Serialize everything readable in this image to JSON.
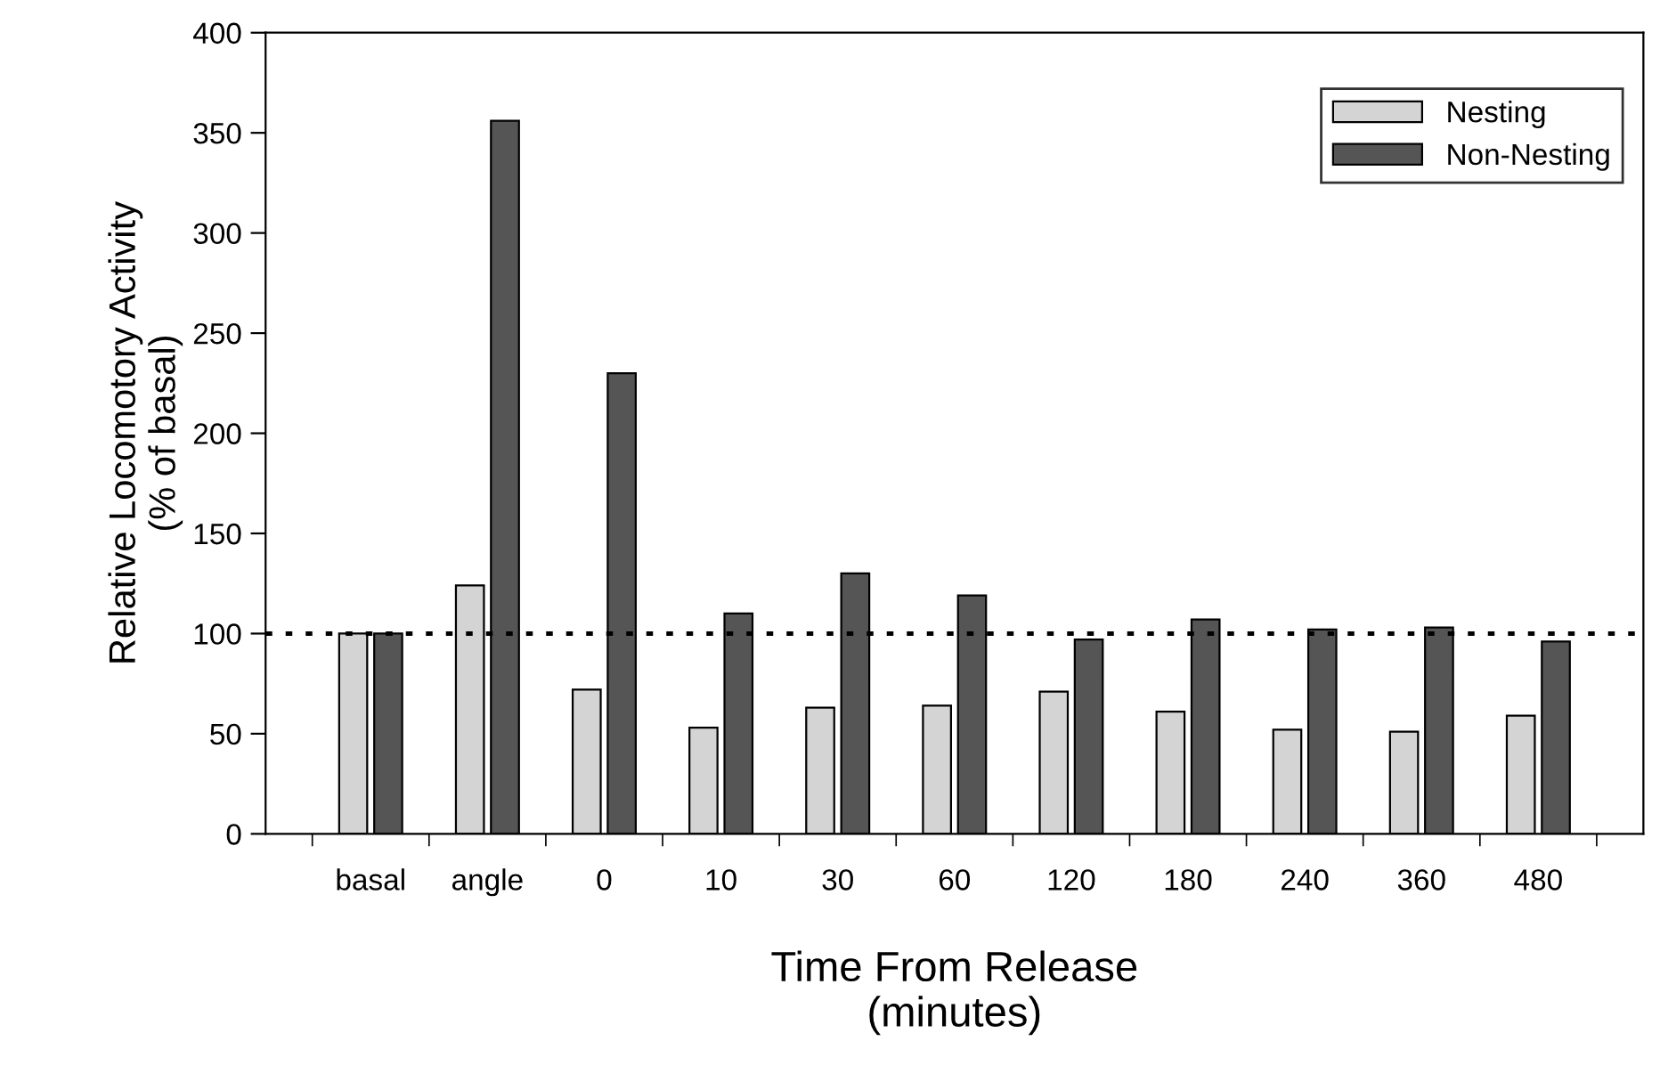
{
  "chart_data": {
    "type": "bar",
    "xlabel": "Time From Release\n(minutes)",
    "ylabel": "Relative Locomotory Activity\n(% of basal)",
    "categories": [
      "basal",
      "angle",
      "0",
      "10",
      "30",
      "60",
      "120",
      "180",
      "240",
      "360",
      "480"
    ],
    "series": [
      {
        "name": "Nesting",
        "color": "#d4d4d4",
        "values": [
          100,
          124,
          72,
          53,
          63,
          64,
          71,
          61,
          52,
          51,
          59
        ]
      },
      {
        "name": "Non-Nesting",
        "color": "#555555",
        "values": [
          100,
          356,
          230,
          110,
          130,
          119,
          97,
          107,
          102,
          103,
          96
        ]
      }
    ],
    "ylim": [
      0,
      400
    ],
    "yticks": [
      0,
      50,
      100,
      150,
      200,
      250,
      300,
      350,
      400
    ],
    "ref_lines": [
      {
        "axis": "y",
        "value": 100,
        "color": "#000000",
        "line_style": "dotted"
      }
    ],
    "legend": "top right",
    "grid": false
  }
}
